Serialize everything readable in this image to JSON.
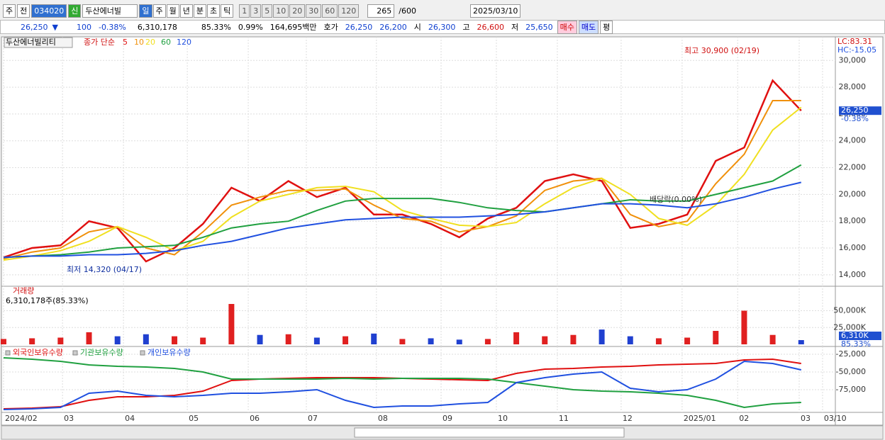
{
  "toolbar": {
    "market": "주",
    "prev": "전",
    "code": "034020",
    "new_badge": "신",
    "name": "두산에너빌",
    "periods": [
      "일",
      "주",
      "월",
      "년",
      "분",
      "초",
      "틱"
    ],
    "intervals": [
      "1",
      "3",
      "5",
      "10",
      "20",
      "30",
      "60",
      "120"
    ],
    "count": "265",
    "max_count": "/600",
    "date": "2025/03/10"
  },
  "info_bar": {
    "price": "26,250",
    "arrow": "▼",
    "change": "100",
    "change_rate": "-0.38%",
    "volume": "6,310,178",
    "volume_ratio": "85.33%",
    "turnover": "0.99%",
    "amount": "164,695백만",
    "ask_label": "호가",
    "ask": "26,250",
    "bid": "26,200",
    "open_label": "시",
    "open": "26,300",
    "high_label": "고",
    "high": "26,600",
    "low_label": "저",
    "low": "25,650",
    "buy": "매수",
    "sell": "매도",
    "avg": "평"
  },
  "chart_data": [
    {
      "type": "line",
      "title": "두산에너빌리티",
      "subtitle": "종가 단순",
      "indicators": [
        "LC:83.31",
        "HC:-15.05"
      ],
      "annotations": [
        "최고 30,900 (02/19)",
        "최저 14,320 (04/17)",
        "배당락(0.00%)"
      ],
      "last_price": {
        "value": 26250,
        "label": "26,250"
      },
      "change_label": "-0.38%",
      "xlim": [
        0,
        29.2
      ],
      "xticks": [
        {
          "value": 0,
          "label": "2024/02"
        },
        {
          "value": 2.07,
          "label": "03"
        },
        {
          "value": 4.21,
          "label": "04"
        },
        {
          "value": 6.45,
          "label": "05"
        },
        {
          "value": 8.59,
          "label": "06"
        },
        {
          "value": 10.63,
          "label": "07"
        },
        {
          "value": 13.09,
          "label": "08"
        },
        {
          "value": 15.36,
          "label": "09"
        },
        {
          "value": 17.3,
          "label": "10"
        },
        {
          "value": 19.44,
          "label": "11"
        },
        {
          "value": 21.68,
          "label": "12"
        },
        {
          "value": 23.82,
          "label": "2025/01"
        },
        {
          "value": 25.77,
          "label": "02"
        },
        {
          "value": 27.93,
          "label": "03"
        },
        {
          "value": 28.75,
          "label": "03/10"
        }
      ],
      "ylim": [
        13200,
        31600
      ],
      "yticks": [
        {
          "value": 14000,
          "label": "14,000"
        },
        {
          "value": 16000,
          "label": "16,000"
        },
        {
          "value": 18000,
          "label": "18,000"
        },
        {
          "value": 20000,
          "label": "20,000"
        },
        {
          "value": 22000,
          "label": "22,000"
        },
        {
          "value": 24000,
          "label": "24,000"
        },
        {
          "value": 26000,
          "label": "26,000"
        },
        {
          "value": 28000,
          "label": "28,000"
        },
        {
          "value": 30000,
          "label": "30,000"
        }
      ],
      "grid": true,
      "series": [
        {
          "name": "5",
          "color": "#e01010",
          "values": [
            15300,
            16000,
            16200,
            18000,
            17500,
            15000,
            16000,
            17800,
            20500,
            19500,
            21000,
            19800,
            20500,
            18500,
            18500,
            17800,
            16800,
            18200,
            19000,
            21000,
            21500,
            21000,
            17500,
            17800,
            18500,
            22500,
            23500,
            28500,
            26250
          ]
        },
        {
          "name": "10",
          "color": "#f0900a",
          "values": [
            15200,
            15700,
            16000,
            17200,
            17600,
            16000,
            15500,
            17200,
            19200,
            19800,
            20300,
            20300,
            20400,
            19200,
            18200,
            18000,
            17200,
            17600,
            18400,
            20300,
            21000,
            21200,
            18500,
            17600,
            18000,
            20800,
            23000,
            27000,
            27000
          ]
        },
        {
          "name": "20",
          "color": "#f0e020",
          "values": [
            15100,
            15400,
            15800,
            16500,
            17600,
            16800,
            15800,
            16500,
            18300,
            19500,
            20000,
            20500,
            20600,
            20200,
            18800,
            18200,
            17700,
            17600,
            17900,
            19300,
            20500,
            21200,
            20000,
            18200,
            17700,
            19200,
            21500,
            24800,
            26500
          ]
        },
        {
          "name": "60",
          "color": "#20a040",
          "values": [
            15300,
            15400,
            15500,
            15700,
            16000,
            16100,
            16200,
            16800,
            17500,
            17800,
            18000,
            18800,
            19500,
            19700,
            19700,
            19700,
            19400,
            19000,
            18800,
            18700,
            19000,
            19300,
            19600,
            19500,
            19500,
            20000,
            20500,
            21000,
            22200
          ]
        },
        {
          "name": "120",
          "color": "#2050e0",
          "values": [
            15300,
            15400,
            15400,
            15500,
            15500,
            15600,
            15800,
            16200,
            16500,
            17000,
            17500,
            17800,
            18100,
            18200,
            18300,
            18300,
            18300,
            18400,
            18500,
            18700,
            19000,
            19300,
            19300,
            19200,
            19000,
            19300,
            19800,
            20400,
            20900
          ]
        }
      ]
    },
    {
      "type": "bar",
      "title": "거래량",
      "subtitle": "6,310,178주(85.33%)",
      "up_color": "#e02020",
      "down_color": "#2040d0",
      "last_value": {
        "value": 6310,
        "label": "6,310K"
      },
      "ratio_label": "85.33%",
      "ylim": [
        0,
        80000
      ],
      "yticks": [
        {
          "value": 25000,
          "label": "25,000K"
        },
        {
          "value": 50000,
          "label": "50,000K"
        }
      ],
      "grid": true,
      "values": [
        8000,
        9000,
        10000,
        18000,
        12000,
        15000,
        12000,
        10000,
        60000,
        14000,
        15000,
        10000,
        12000,
        16000,
        8000,
        9000,
        7000,
        8000,
        18000,
        12000,
        14000,
        22000,
        12000,
        9000,
        10000,
        20000,
        50000,
        14000,
        6310
      ]
    },
    {
      "type": "line",
      "ylim": [
        -105000,
        -17000
      ],
      "grid": true,
      "yticks": [
        {
          "value": -25000,
          "label": "-25,000"
        },
        {
          "value": -50000,
          "label": "-50,000"
        },
        {
          "value": -75000,
          "label": "-75,000"
        }
      ],
      "series": [
        {
          "name": "외국인보유수량",
          "color": "#e01010",
          "values": [
            -102000,
            -101000,
            -99000,
            -90000,
            -85000,
            -85000,
            -83000,
            -77000,
            -62000,
            -60000,
            -59000,
            -58000,
            -58000,
            -58000,
            -59000,
            -60000,
            -61000,
            -62000,
            -52000,
            -46000,
            -45000,
            -43000,
            -42000,
            -40000,
            -39000,
            -38000,
            -33000,
            -32000,
            -38000
          ]
        },
        {
          "name": "기관보유수량",
          "color": "#20a040",
          "values": [
            -30000,
            -32000,
            -35000,
            -40000,
            -42000,
            -43000,
            -45000,
            -50000,
            -60000,
            -60000,
            -60000,
            -60000,
            -59000,
            -60000,
            -59000,
            -59000,
            -59000,
            -60000,
            -65000,
            -70000,
            -75000,
            -77000,
            -78000,
            -80000,
            -83000,
            -90000,
            -100000,
            -95000,
            -93000
          ]
        },
        {
          "name": "개인보유수량",
          "color": "#2050e0",
          "values": [
            -103000,
            -102000,
            -100000,
            -80000,
            -77000,
            -83000,
            -85000,
            -83000,
            -80000,
            -80000,
            -78000,
            -75000,
            -90000,
            -100000,
            -98000,
            -98000,
            -95000,
            -93000,
            -65000,
            -58000,
            -53000,
            -50000,
            -73000,
            -78000,
            -75000,
            -60000,
            -35000,
            -38000,
            -47000
          ]
        }
      ]
    }
  ]
}
